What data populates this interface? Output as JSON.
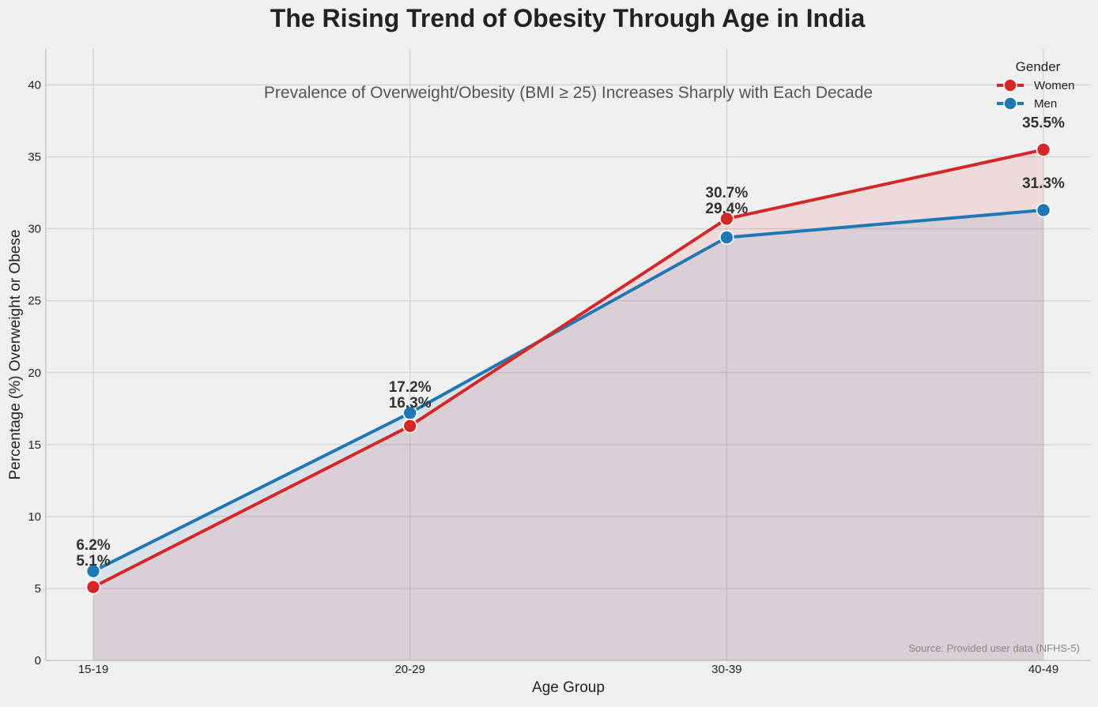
{
  "chart_data": {
    "type": "line",
    "title": "The Rising Trend of Obesity Through Age in India",
    "subtitle": "Prevalence of Overweight/Obesity (BMI ≥ 25) Increases Sharply with Each Decade",
    "xlabel": "Age Group",
    "ylabel": "Percentage (%) Overweight or Obese",
    "categories": [
      "15-19",
      "20-29",
      "30-39",
      "40-49"
    ],
    "ylim": [
      0,
      42.5
    ],
    "yticks": [
      0,
      5,
      10,
      15,
      20,
      25,
      30,
      35,
      40
    ],
    "grid": true,
    "legend": {
      "title": "Gender",
      "position": "top-right"
    },
    "series": [
      {
        "name": "Women",
        "values": [
          5.1,
          16.3,
          30.7,
          35.5
        ],
        "labels": [
          "5.1%",
          "16.3%",
          "30.7%",
          "35.5%"
        ],
        "color": "#d62728"
      },
      {
        "name": "Men",
        "values": [
          6.2,
          17.2,
          29.4,
          31.3
        ],
        "labels": [
          "6.2%",
          "17.2%",
          "29.4%",
          "31.3%"
        ],
        "color": "#1f77b4"
      }
    ],
    "source_note": "Source: Provided user data (NFHS-5)"
  }
}
